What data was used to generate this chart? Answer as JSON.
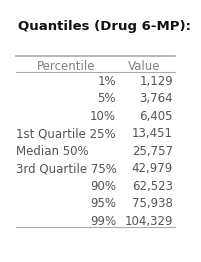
{
  "title": "Quantiles (Drug 6-MP):",
  "col1_header": "Percentile",
  "col2_header": "Value",
  "rows": [
    {
      "percentile": "1%",
      "value": "1,129",
      "left_align": false
    },
    {
      "percentile": "5%",
      "value": "3,764",
      "left_align": false
    },
    {
      "percentile": "10%",
      "value": "6,405",
      "left_align": false
    },
    {
      "percentile": "1st Quartile 25%",
      "value": "13,451",
      "left_align": true
    },
    {
      "percentile": "Median 50%",
      "value": "25,757",
      "left_align": true
    },
    {
      "percentile": "3rd Quartile 75%",
      "value": "42,979",
      "left_align": true
    },
    {
      "percentile": "90%",
      "value": "62,523",
      "left_align": false
    },
    {
      "percentile": "95%",
      "value": "75,938",
      "left_align": false
    },
    {
      "percentile": "99%",
      "value": "104,329",
      "left_align": false
    }
  ],
  "bg_color": "#ffffff",
  "title_fontsize": 9.5,
  "header_fontsize": 8.5,
  "row_fontsize": 8.5,
  "title_font_weight": "bold",
  "header_color": "#808080",
  "row_color": "#555555",
  "border_color": "#aaaaaa",
  "title_color": "#111111"
}
